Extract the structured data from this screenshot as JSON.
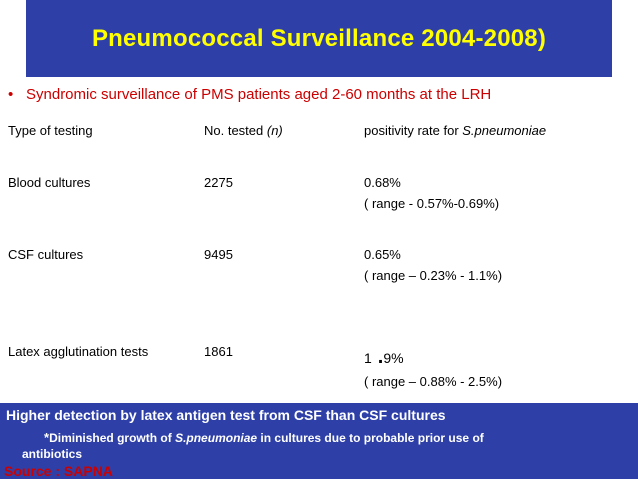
{
  "title": "Pneumococcal Surveillance 2004-2008)",
  "bullet": {
    "marker": "•",
    "text": "Syndromic surveillance of  PMS patients  aged 2-60 months at the  LRH"
  },
  "table": {
    "headers": {
      "type": "Type of testing",
      "tested_prefix": "No. tested ",
      "tested_italic": "(n)",
      "rate_prefix": "positivity rate for ",
      "rate_italic": "S.pneumoniae"
    },
    "rows": [
      {
        "type": "Blood cultures",
        "tested": "2275",
        "rate": "0.68%",
        "range": "( range - 0.57%-0.69%)"
      },
      {
        "type": "CSF cultures",
        "tested": "9495",
        "rate": "0.65%",
        "range": "( range – 0.23% - 1.1%)"
      },
      {
        "type": "Latex agglutination tests",
        "tested": "1861",
        "rate_a": "1",
        "rate_dot": ".",
        "rate_b": "9%",
        "range": "( range – 0.88% - 2.5%)"
      }
    ]
  },
  "footer": {
    "line1": "Higher detection by  latex antigen  test from CSF than  CSF cultures",
    "line2_star": "*",
    "line2_a": "Diminished growth of ",
    "line2_italic": "S.pneumoniae",
    "line2_b": " in  cultures  due to probable prior use of",
    "line3": "antibiotics",
    "source": "Source : SAPNA"
  },
  "colors": {
    "title_bg": "#2e40a8",
    "title_text": "#ffff00",
    "bullet_text": "#cc0000",
    "footer_bg": "#2e40a8",
    "footer_text": "#ffffff",
    "source_text": "#cc0000"
  }
}
